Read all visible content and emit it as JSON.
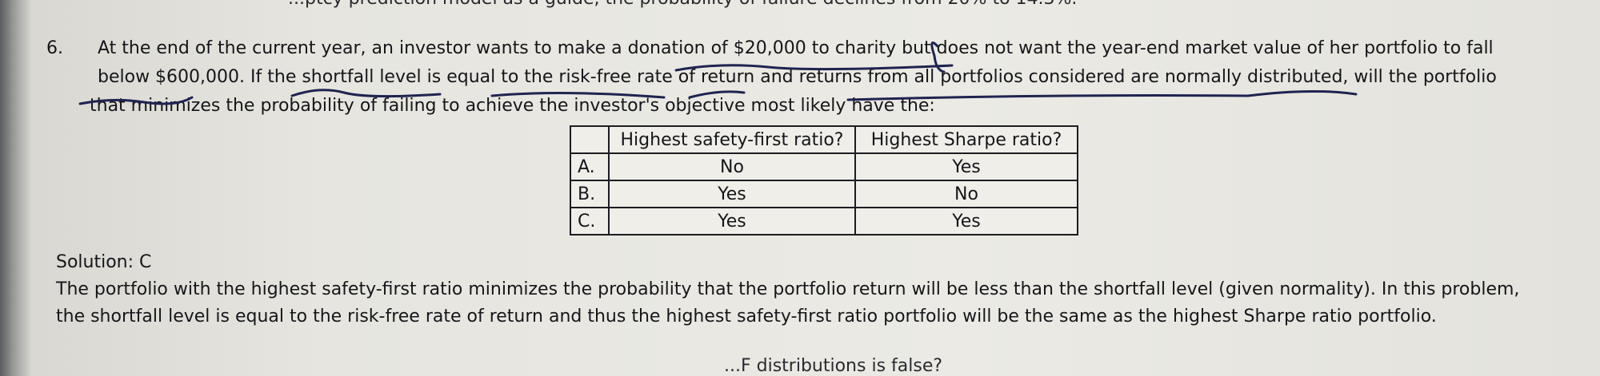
{
  "top_fragment": "...ptcy prediction model as a guide, the probability of failure declines from 20% to 14.3%.",
  "question": {
    "number": "6.",
    "lines": [
      "At the end of the current year, an investor wants to make a donation of $20,000 to charity but does not want the year-end market value of her portfolio to fall",
      "below $600,000. If the shortfall level is equal to the risk-free rate of return and returns from all portfolios considered are normally distributed, will the portfolio",
      "that minimizes the probability of failing to achieve the investor's objective most likely have the:"
    ]
  },
  "table": {
    "headers": [
      "",
      "Highest safety-first ratio?",
      "Highest Sharpe ratio?"
    ],
    "rows": [
      [
        "A.",
        "No",
        "Yes"
      ],
      [
        "B.",
        "Yes",
        "No"
      ],
      [
        "C.",
        "Yes",
        "Yes"
      ]
    ]
  },
  "solution": {
    "label": "Solution: C",
    "lines": [
      "The portfolio with the highest safety-first ratio minimizes the probability that the portfolio return will be less than the shortfall level (given normality). In this problem,",
      "the shortfall level is equal to the risk-free rate of return and thus the highest safety-first ratio portfolio will be the same as the highest Sharpe ratio portfolio."
    ]
  },
  "bottom_fragment": "...F distributions is false?",
  "colors": {
    "ink": "#1e2350",
    "paper": "#e9e8e2",
    "text": "#16161a"
  }
}
